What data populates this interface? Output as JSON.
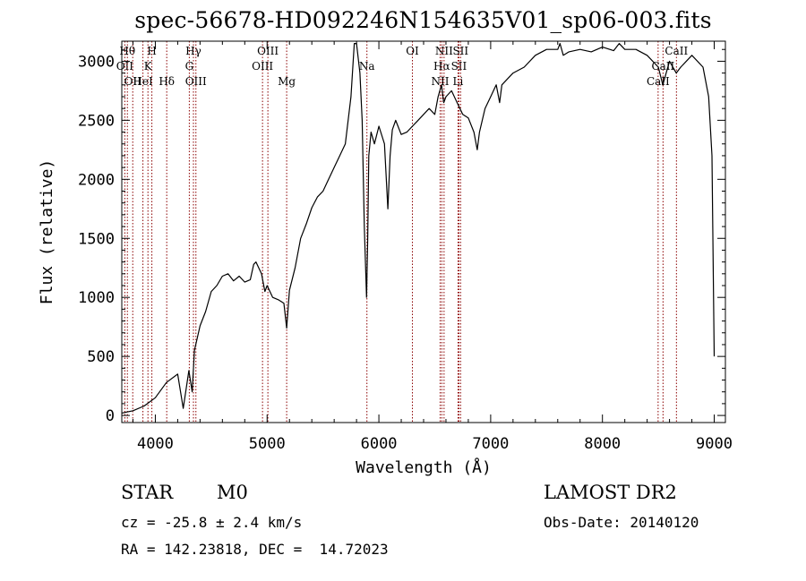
{
  "page": {
    "title": "spec-56678-HD092246N154635V01_sp06-003.fits"
  },
  "info": {
    "class": "STAR",
    "subclass": "M0",
    "survey": "LAMOST DR2",
    "cz": "cz = -25.8 ± 2.4 km/s",
    "obs_date": "Obs-Date: 20140120",
    "radec": "RA = 142.23818, DEC =  14.72023"
  },
  "chart_data": {
    "type": "line",
    "title": "spec-56678-HD092246N154635V01_sp06-003.fits",
    "xlabel": "Wavelength (Å)",
    "ylabel": "Flux (relative)",
    "xlim": [
      3700,
      9100
    ],
    "ylim": [
      -60,
      3170
    ],
    "xticks": [
      4000,
      5000,
      6000,
      7000,
      8000,
      9000
    ],
    "yticks": [
      0,
      500,
      1000,
      1500,
      2000,
      2500,
      3000
    ],
    "line_color": "#000000",
    "marker_color": "#8b0000",
    "series": [
      {
        "x": [
          3700,
          3800,
          3900,
          4000,
          4100,
          4200,
          4250,
          4300,
          4330,
          4350,
          4400,
          4450,
          4500,
          4550,
          4600,
          4650,
          4700,
          4750,
          4800,
          4850,
          4880,
          4900,
          4950,
          4980,
          5000,
          5050,
          5100,
          5150,
          5175,
          5200,
          5250,
          5300,
          5350,
          5400,
          5450,
          5500,
          5550,
          5600,
          5650,
          5700,
          5750,
          5780,
          5800,
          5830,
          5850,
          5870,
          5890,
          5900,
          5910,
          5930,
          5960,
          6000,
          6050,
          6080,
          6100,
          6120,
          6150,
          6200,
          6250,
          6300,
          6350,
          6400,
          6450,
          6500,
          6530,
          6560,
          6580,
          6600,
          6650,
          6700,
          6750,
          6800,
          6850,
          6880,
          6900,
          6950,
          7000,
          7050,
          7080,
          7100,
          7150,
          7200,
          7300,
          7400,
          7500,
          7600,
          7620,
          7650,
          7700,
          7800,
          7900,
          8000,
          8100,
          8150,
          8200,
          8300,
          8400,
          8500,
          8540,
          8600,
          8660,
          8700,
          8800,
          8900,
          8950,
          8980,
          9000
        ],
        "y": [
          20,
          40,
          80,
          150,
          280,
          350,
          60,
          380,
          200,
          550,
          760,
          880,
          1050,
          1100,
          1180,
          1200,
          1140,
          1180,
          1130,
          1150,
          1280,
          1300,
          1200,
          1050,
          1100,
          1000,
          980,
          950,
          740,
          1060,
          1250,
          1500,
          1620,
          1760,
          1850,
          1900,
          2000,
          2100,
          2200,
          2300,
          2700,
          3150,
          3150,
          2900,
          2500,
          1600,
          1000,
          1500,
          2200,
          2400,
          2300,
          2450,
          2300,
          1750,
          2200,
          2420,
          2500,
          2380,
          2400,
          2450,
          2500,
          2550,
          2600,
          2550,
          2700,
          2800,
          2650,
          2700,
          2750,
          2650,
          2550,
          2520,
          2400,
          2250,
          2400,
          2600,
          2700,
          2800,
          2650,
          2800,
          2850,
          2900,
          2950,
          3050,
          3100,
          3100,
          3150,
          3050,
          3080,
          3100,
          3080,
          3120,
          3090,
          3150,
          3100,
          3100,
          3050,
          2950,
          2800,
          3000,
          2900,
          2950,
          3050,
          2950,
          2700,
          2200,
          500
        ]
      }
    ],
    "lines": [
      {
        "w": 3727,
        "labels": [
          "OII"
        ],
        "rows": [
          1
        ]
      },
      {
        "w": 3750,
        "labels": [
          "Hθ"
        ],
        "rows": [
          0
        ]
      },
      {
        "w": 3798,
        "labels": [
          "OII"
        ],
        "rows": [
          2
        ]
      },
      {
        "w": 3889,
        "labels": [
          "HeI"
        ],
        "rows": [
          2
        ]
      },
      {
        "w": 3934,
        "labels": [
          "K"
        ],
        "rows": [
          1
        ]
      },
      {
        "w": 3969,
        "labels": [
          "H"
        ],
        "rows": [
          0
        ]
      },
      {
        "w": 4102,
        "labels": [
          "Hδ"
        ],
        "rows": [
          2
        ]
      },
      {
        "w": 4304,
        "labels": [
          "G"
        ],
        "rows": [
          1
        ]
      },
      {
        "w": 4341,
        "labels": [
          "Hγ"
        ],
        "rows": [
          0
        ]
      },
      {
        "w": 4363,
        "labels": [
          "OIII"
        ],
        "rows": [
          2
        ]
      },
      {
        "w": 4959,
        "labels": [
          "OIII"
        ],
        "rows": [
          1
        ]
      },
      {
        "w": 5007,
        "labels": [
          "OIII"
        ],
        "rows": [
          0
        ]
      },
      {
        "w": 5175,
        "labels": [
          "Mg"
        ],
        "rows": [
          2
        ]
      },
      {
        "w": 5893,
        "labels": [
          "Na"
        ],
        "rows": [
          1
        ]
      },
      {
        "w": 6300,
        "labels": [
          "OI"
        ],
        "rows": [
          0
        ]
      },
      {
        "w": 6548,
        "labels": [
          "NII"
        ],
        "rows": [
          2
        ]
      },
      {
        "w": 6563,
        "labels": [
          "Hα"
        ],
        "rows": [
          1
        ]
      },
      {
        "w": 6583,
        "labels": [
          "NII"
        ],
        "rows": [
          0
        ]
      },
      {
        "w": 6708,
        "labels": [
          "Li"
        ],
        "rows": [
          2
        ]
      },
      {
        "w": 6716,
        "labels": [
          "SII"
        ],
        "rows": [
          1
        ]
      },
      {
        "w": 6731,
        "labels": [
          "SII"
        ],
        "rows": [
          0
        ]
      },
      {
        "w": 8498,
        "labels": [
          "CaII"
        ],
        "rows": [
          2
        ]
      },
      {
        "w": 8542,
        "labels": [
          "CaII"
        ],
        "rows": [
          1
        ]
      },
      {
        "w": 8662,
        "labels": [
          "CaII"
        ],
        "rows": [
          0
        ]
      }
    ]
  }
}
